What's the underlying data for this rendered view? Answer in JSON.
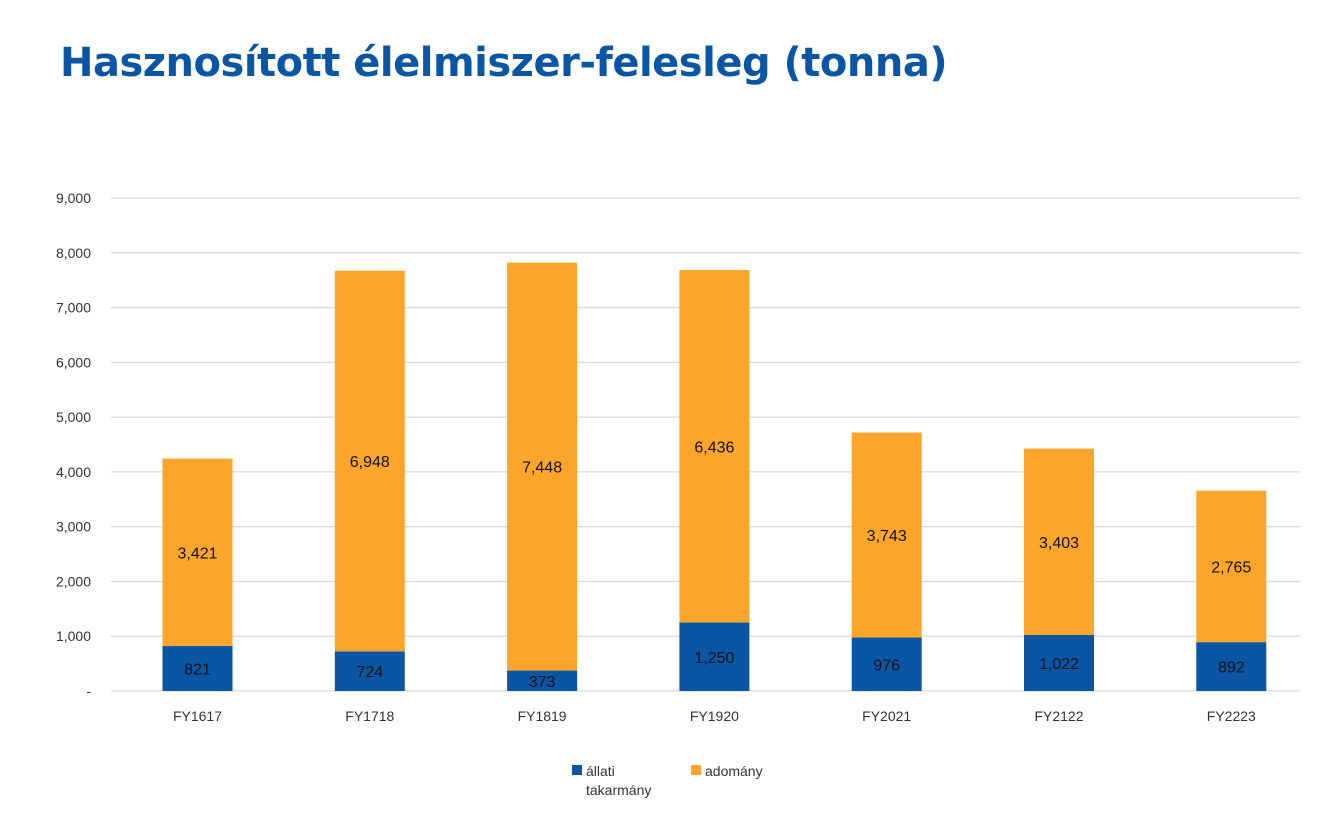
{
  "chart_data": {
    "type": "bar",
    "stacked": true,
    "title": "Hasznosított élelmiszer-felesleg (tonna)",
    "categories": [
      "FY1617",
      "FY1718",
      "FY1819",
      "FY1920",
      "FY2021",
      "FY2122",
      "FY2223"
    ],
    "series": [
      {
        "name": "állati takarmány",
        "color": "#0a56a5",
        "values": [
          821,
          724,
          373,
          1250,
          976,
          1022,
          892
        ],
        "labels": [
          "821",
          "724",
          "373",
          "1,250",
          "976",
          "1,022",
          "892"
        ]
      },
      {
        "name": "adomány",
        "color": "#fba62b",
        "values": [
          3421,
          6948,
          7448,
          6436,
          3743,
          3403,
          2765
        ],
        "labels": [
          "3,421",
          "6,948",
          "7,448",
          "6,436",
          "3,743",
          "3,403",
          "2,765"
        ]
      }
    ],
    "ylim": [
      0,
      9000
    ],
    "y_ticks": [
      0,
      1000,
      2000,
      3000,
      4000,
      5000,
      6000,
      7000,
      8000,
      9000
    ],
    "y_tick_labels": [
      "-",
      "1,000",
      "2,000",
      "3,000",
      "4,000",
      "5,000",
      "6,000",
      "7,000",
      "8,000",
      "9,000"
    ],
    "grid": true,
    "legend_position": "bottom"
  }
}
